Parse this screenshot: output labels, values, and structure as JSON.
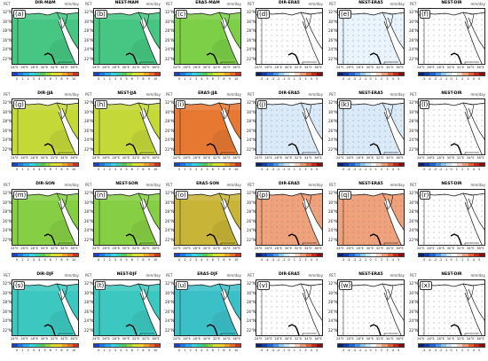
{
  "figure": {
    "unit_label": "mm/day",
    "corner_label": "PET",
    "latitude_ticks": [
      "32°N",
      "30°N",
      "28°N",
      "26°N",
      "24°N",
      "22°N"
    ],
    "longitude_ticks": [
      "24°E",
      "26°E",
      "28°E",
      "30°E",
      "32°E",
      "34°E",
      "36°E"
    ],
    "abs_scale_ticks": [
      "0",
      "1",
      "2",
      "3",
      "4",
      "5",
      "6",
      "7",
      "8",
      "9",
      "10"
    ],
    "diff_scale_ticks": [
      "-5",
      "-4",
      "-3",
      "-2",
      "-1",
      "0",
      "1",
      "2",
      "3",
      "4",
      "5"
    ],
    "abs_colors": [
      "#1a44c8",
      "#1e78e6",
      "#28a8f0",
      "#36d2e8",
      "#38d0a8",
      "#50c85a",
      "#96d23a",
      "#d2e032",
      "#f0d22a",
      "#f0a028",
      "#e87024",
      "#d2321e"
    ],
    "diff_colors": [
      "#08206e",
      "#123ca8",
      "#2064d8",
      "#4a96ee",
      "#8cc4f4",
      "#c8e4f8",
      "#ffffff",
      "#f8d2c0",
      "#f09a78",
      "#e06038",
      "#c8281a",
      "#8c0c0c"
    ],
    "panels": [
      {
        "label": "(a)",
        "title": "DIR-MAM",
        "kind": "abs",
        "fill": "#46c682"
      },
      {
        "label": "(b)",
        "title": "NEST-MAM",
        "kind": "abs",
        "fill": "#46c682"
      },
      {
        "label": "(c)",
        "title": "ERA5-MAM",
        "kind": "abs",
        "fill": "#7ccf46"
      },
      {
        "label": "(d)",
        "title": "DIR-ERA5",
        "kind": "diff",
        "fill": "#ffffff"
      },
      {
        "label": "(e)",
        "title": "NEST-ERA5",
        "kind": "diff",
        "fill": "#eaf4fc"
      },
      {
        "label": "(f)",
        "title": "NEST-DIR",
        "kind": "diff",
        "fill": "#ffffff"
      },
      {
        "label": "(g)",
        "title": "DIR-JJA",
        "kind": "abs",
        "fill": "#c4d838"
      },
      {
        "label": "(h)",
        "title": "NEST-JJA",
        "kind": "abs",
        "fill": "#c4d838"
      },
      {
        "label": "(i)",
        "title": "ERA5-JJA",
        "kind": "abs",
        "fill": "#e67832"
      },
      {
        "label": "(j)",
        "title": "DIR-ERA5",
        "kind": "diff",
        "fill": "#dbeaf8"
      },
      {
        "label": "(k)",
        "title": "NEST-ERA5",
        "kind": "diff",
        "fill": "#dbeaf8"
      },
      {
        "label": "(l)",
        "title": "NEST-DIR",
        "kind": "diff",
        "fill": "#ffffff"
      },
      {
        "label": "(m)",
        "title": "DIR-SON",
        "kind": "abs",
        "fill": "#86cf44"
      },
      {
        "label": "(n)",
        "title": "NEST-SON",
        "kind": "abs",
        "fill": "#86cf44"
      },
      {
        "label": "(o)",
        "title": "ERA5-SON",
        "kind": "abs",
        "fill": "#c8b436"
      },
      {
        "label": "(p)",
        "title": "DIR-ERA5",
        "kind": "diff",
        "fill": "#f0a27c"
      },
      {
        "label": "(q)",
        "title": "NEST-ERA5",
        "kind": "diff",
        "fill": "#f0a27c"
      },
      {
        "label": "(r)",
        "title": "NEST-DIR",
        "kind": "diff",
        "fill": "#ffffff"
      },
      {
        "label": "(s)",
        "title": "DIR-DJF",
        "kind": "abs",
        "fill": "#3cc8c0"
      },
      {
        "label": "(t)",
        "title": "NEST-DJF",
        "kind": "abs",
        "fill": "#3cc8c0"
      },
      {
        "label": "(u)",
        "title": "ERA5-DJF",
        "kind": "abs",
        "fill": "#3cc0c8"
      },
      {
        "label": "(v)",
        "title": "DIR-ERA5",
        "kind": "diff",
        "fill": "#ffffff"
      },
      {
        "label": "(w)",
        "title": "NEST-ERA5",
        "kind": "diff",
        "fill": "#ffffff"
      },
      {
        "label": "(x)",
        "title": "NEST-DIR",
        "kind": "diff",
        "fill": "#ffffff"
      }
    ]
  }
}
